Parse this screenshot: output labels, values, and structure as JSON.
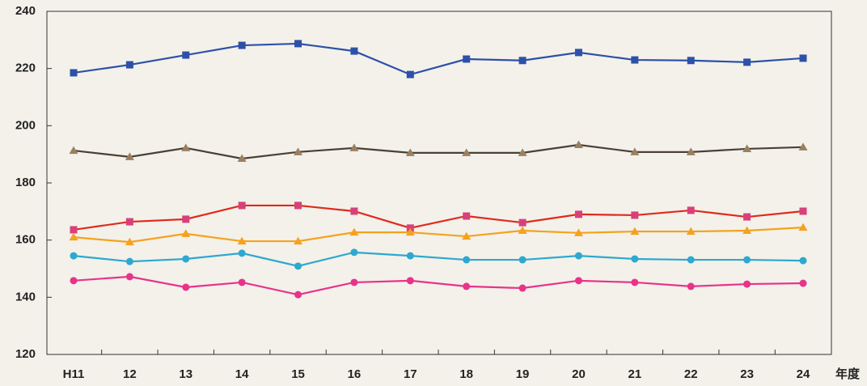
{
  "chart_data": {
    "type": "line",
    "x_label": "年度",
    "categories": [
      "H11",
      "12",
      "13",
      "14",
      "15",
      "16",
      "17",
      "18",
      "19",
      "20",
      "21",
      "22",
      "23",
      "24"
    ],
    "series": [
      {
        "color": "#2d50a8",
        "marker": "square",
        "values": [
          218.5,
          221.3,
          224.7,
          228.1,
          228.7,
          226.1,
          217.9,
          223.3,
          222.8,
          225.6,
          223.0,
          222.8,
          222.2,
          223.6
        ]
      },
      {
        "color": "#4a4036",
        "marker": "triangle",
        "markerColor": "#9a8060",
        "values": [
          191.3,
          189.1,
          192.2,
          188.5,
          190.8,
          192.2,
          190.5,
          190.5,
          190.5,
          193.3,
          190.8,
          190.8,
          191.9,
          192.5
        ]
      },
      {
        "color": "#e02a1e",
        "marker": "square",
        "markerColor": "#d8407a",
        "values": [
          163.6,
          166.4,
          167.3,
          172.1,
          172.1,
          170.1,
          164.2,
          168.4,
          166.1,
          169.0,
          168.7,
          170.4,
          168.1,
          170.1
        ]
      },
      {
        "color": "#f5a21e",
        "marker": "triangle",
        "values": [
          161.0,
          159.3,
          162.2,
          159.6,
          159.6,
          162.7,
          162.7,
          161.3,
          163.3,
          162.5,
          163.0,
          163.0,
          163.3,
          164.4
        ]
      },
      {
        "color": "#2ea8d0",
        "marker": "circle",
        "values": [
          154.5,
          152.5,
          153.4,
          155.4,
          150.9,
          155.7,
          154.5,
          153.1,
          153.1,
          154.5,
          153.4,
          153.1,
          153.1,
          152.8
        ]
      },
      {
        "color": "#e8338a",
        "marker": "circle",
        "values": [
          145.8,
          147.2,
          143.5,
          145.2,
          140.9,
          145.2,
          145.8,
          143.8,
          143.2,
          145.8,
          145.2,
          143.8,
          144.6,
          144.9
        ]
      }
    ],
    "ylim": [
      120,
      240
    ],
    "yticks": [
      120,
      140,
      160,
      180,
      200,
      220,
      240
    ],
    "grid": false
  }
}
